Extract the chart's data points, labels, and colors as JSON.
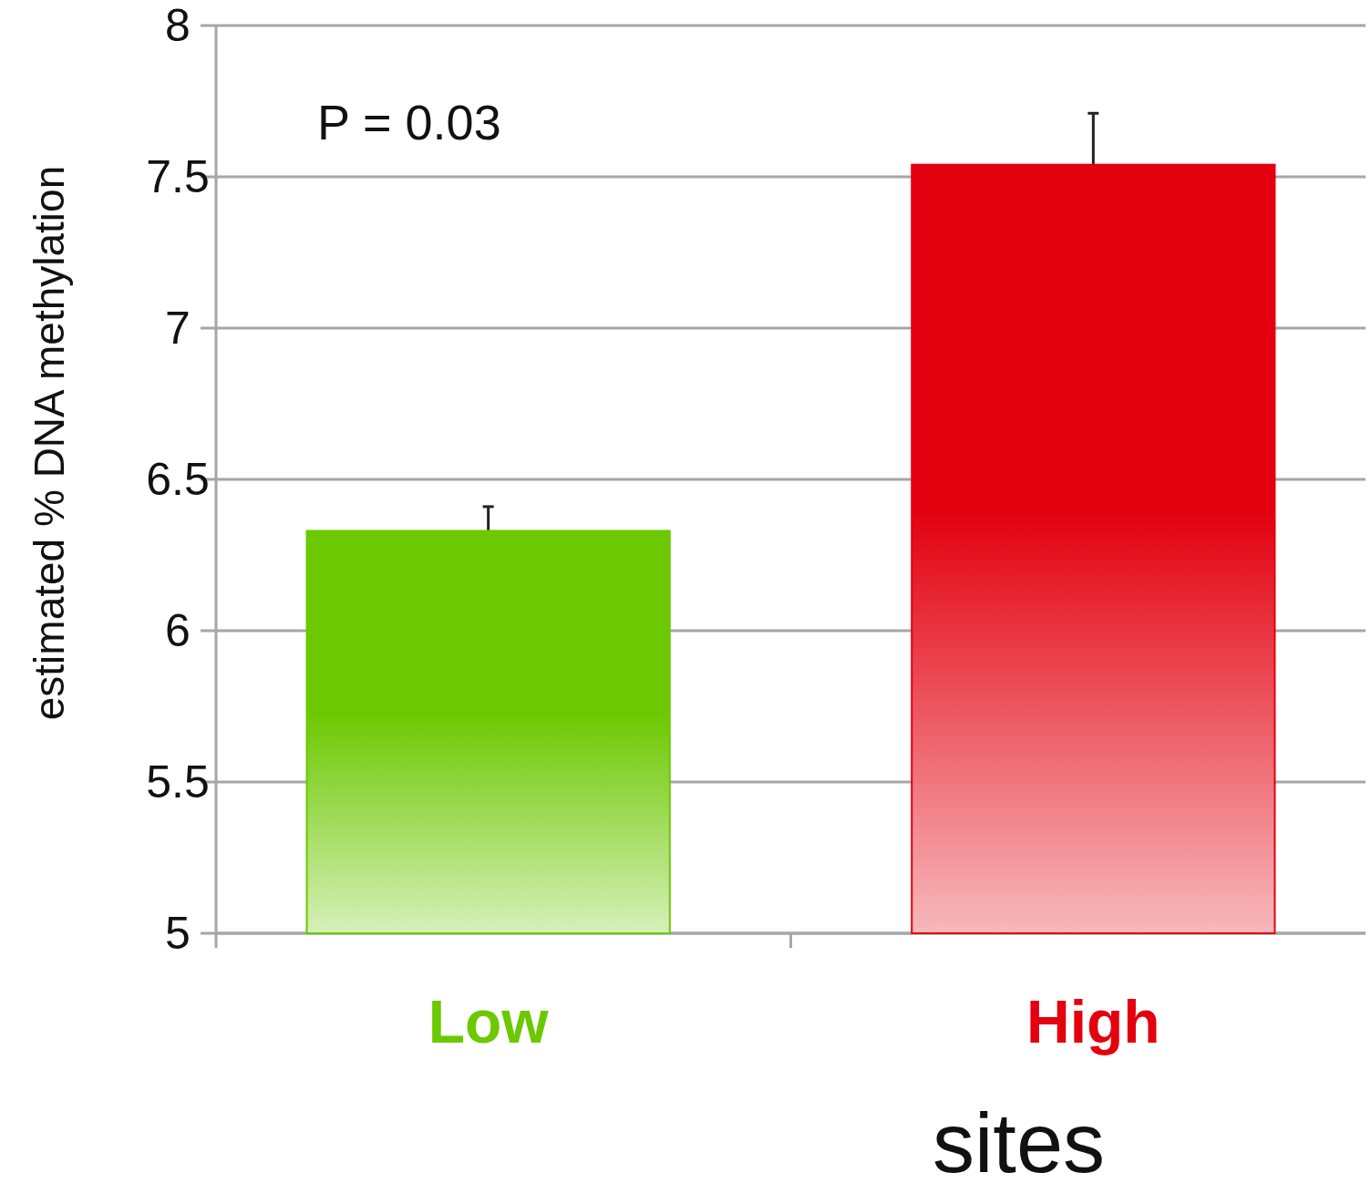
{
  "chart_data": {
    "type": "bar",
    "xlabel": "sites",
    "ylabel": "estimated % DNA methylation",
    "categories": [
      "Low",
      "High"
    ],
    "values": [
      6.33,
      7.54
    ],
    "errors": [
      0.08,
      0.17
    ],
    "colors": [
      "#6cc800",
      "#e3000f"
    ],
    "ylim": [
      5,
      8
    ],
    "yticks": [
      5,
      5.5,
      6,
      6.5,
      7,
      7.5,
      8
    ],
    "grid": "y",
    "annotations": [
      "P = 0.03"
    ]
  }
}
